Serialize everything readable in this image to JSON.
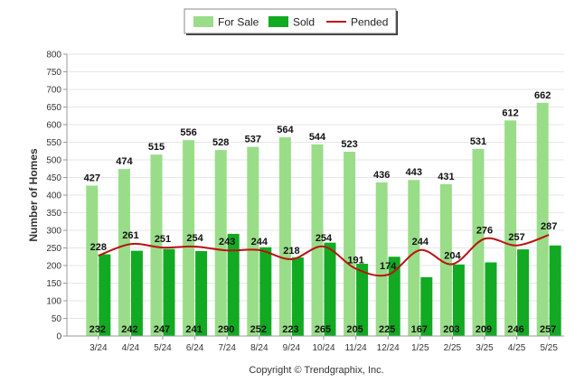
{
  "chart_data": {
    "type": "bar",
    "title": "",
    "xlabel": "",
    "ylabel": "Number of Homes",
    "categories": [
      "3/24",
      "4/24",
      "5/24",
      "6/24",
      "7/24",
      "8/24",
      "9/24",
      "10/24",
      "11/24",
      "12/24",
      "1/25",
      "2/25",
      "3/25",
      "4/25",
      "5/25"
    ],
    "series": [
      {
        "name": "For Sale",
        "type": "bar",
        "color": "#99dd88",
        "values": [
          427,
          474,
          515,
          556,
          528,
          537,
          564,
          544,
          523,
          436,
          443,
          431,
          531,
          612,
          662
        ]
      },
      {
        "name": "Sold",
        "type": "bar",
        "color": "#11aa22",
        "values": [
          232,
          242,
          247,
          241,
          290,
          252,
          223,
          265,
          205,
          225,
          167,
          203,
          209,
          246,
          257
        ]
      },
      {
        "name": "Pended",
        "type": "line",
        "color": "#bb1111",
        "values": [
          228,
          261,
          251,
          254,
          243,
          244,
          218,
          254,
          191,
          174,
          244,
          204,
          276,
          257,
          287
        ]
      }
    ],
    "ylim": [
      0,
      800
    ],
    "yticks": [
      0,
      50,
      100,
      150,
      200,
      250,
      300,
      350,
      400,
      450,
      500,
      550,
      600,
      650,
      700,
      750,
      800
    ],
    "grid": true,
    "legend_position": "top-center",
    "copyright": "Copyright © Trendgraphix, Inc."
  }
}
